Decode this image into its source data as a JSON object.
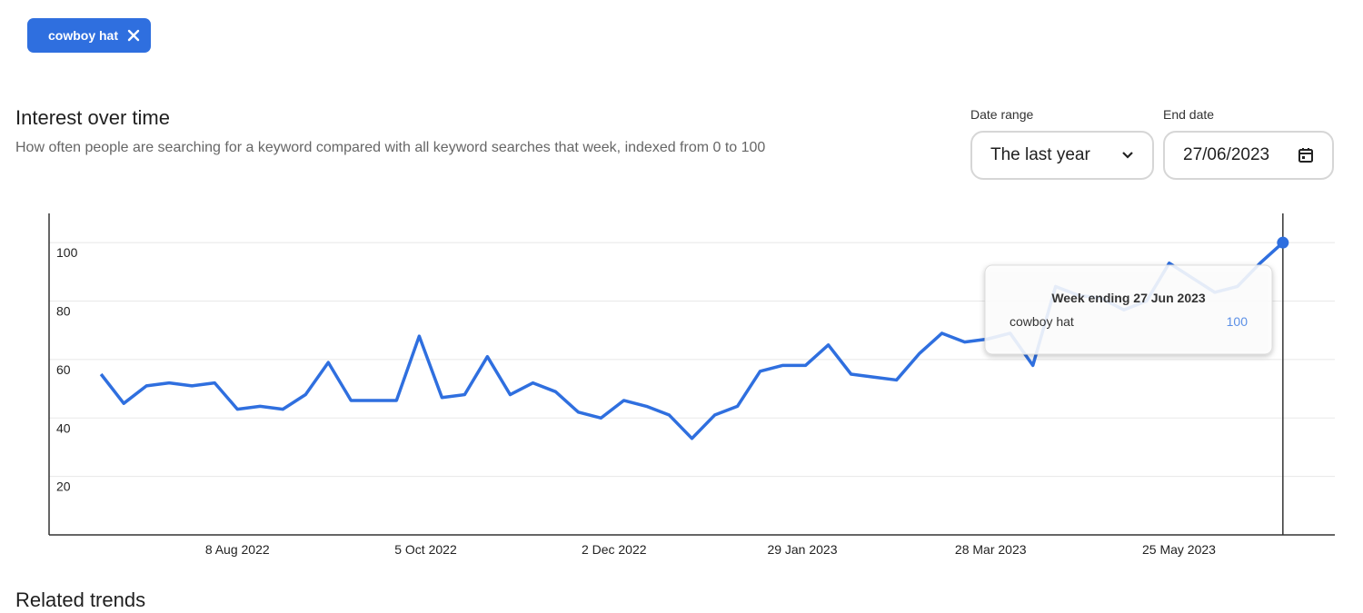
{
  "chip": {
    "label": "cowboy hat"
  },
  "section": {
    "title": "Interest over time",
    "subtitle": "How often people are searching for a keyword compared with all keyword searches that week, indexed from 0 to 100"
  },
  "controls": {
    "date_range_label": "Date range",
    "date_range_value": "The last year",
    "end_date_label": "End date",
    "end_date_value": "27/06/2023"
  },
  "chart_data": {
    "type": "line",
    "x": [
      "2022-06-28",
      "2022-07-05",
      "2022-07-12",
      "2022-07-19",
      "2022-07-26",
      "2022-08-02",
      "2022-08-09",
      "2022-08-16",
      "2022-08-23",
      "2022-08-30",
      "2022-09-06",
      "2022-09-13",
      "2022-09-20",
      "2022-09-27",
      "2022-10-04",
      "2022-10-11",
      "2022-10-18",
      "2022-10-25",
      "2022-11-01",
      "2022-11-08",
      "2022-11-15",
      "2022-11-22",
      "2022-11-29",
      "2022-12-06",
      "2022-12-13",
      "2022-12-20",
      "2022-12-27",
      "2023-01-03",
      "2023-01-10",
      "2023-01-17",
      "2023-01-24",
      "2023-01-31",
      "2023-02-07",
      "2023-02-14",
      "2023-02-21",
      "2023-02-28",
      "2023-03-07",
      "2023-03-14",
      "2023-03-21",
      "2023-03-28",
      "2023-04-04",
      "2023-04-11",
      "2023-04-18",
      "2023-04-25",
      "2023-05-02",
      "2023-05-09",
      "2023-05-16",
      "2023-05-23",
      "2023-05-30",
      "2023-06-06",
      "2023-06-13",
      "2023-06-20",
      "2023-06-27"
    ],
    "series": [
      {
        "name": "cowboy hat",
        "color": "#2f6fdf",
        "values": [
          55,
          45,
          51,
          52,
          51,
          52,
          43,
          44,
          43,
          48,
          59,
          46,
          46,
          46,
          68,
          47,
          48,
          61,
          48,
          52,
          49,
          42,
          40,
          46,
          44,
          41,
          33,
          41,
          44,
          56,
          58,
          58,
          65,
          55,
          54,
          53,
          62,
          69,
          66,
          67,
          69,
          58,
          85,
          82,
          81,
          77,
          80,
          93,
          88,
          83,
          85,
          93,
          100
        ]
      }
    ],
    "xlim": [
      "2022-06-12",
      "2023-07-13"
    ],
    "xticks": [
      {
        "value": "2022-08-09",
        "label": "8 Aug 2022"
      },
      {
        "value": "2022-10-06",
        "label": "5 Oct 2022"
      },
      {
        "value": "2022-12-03",
        "label": "2 Dec 2022"
      },
      {
        "value": "2023-01-30",
        "label": "29 Jan 2023"
      },
      {
        "value": "2023-03-29",
        "label": "28 Mar 2023"
      },
      {
        "value": "2023-05-26",
        "label": "25 May 2023"
      }
    ],
    "ylim": [
      0,
      110
    ],
    "yticks": [
      20,
      40,
      60,
      80,
      100
    ],
    "grid": true,
    "tooltip": {
      "title": "Week ending 27 Jun 2023"
    }
  },
  "related": {
    "title": "Related trends"
  }
}
